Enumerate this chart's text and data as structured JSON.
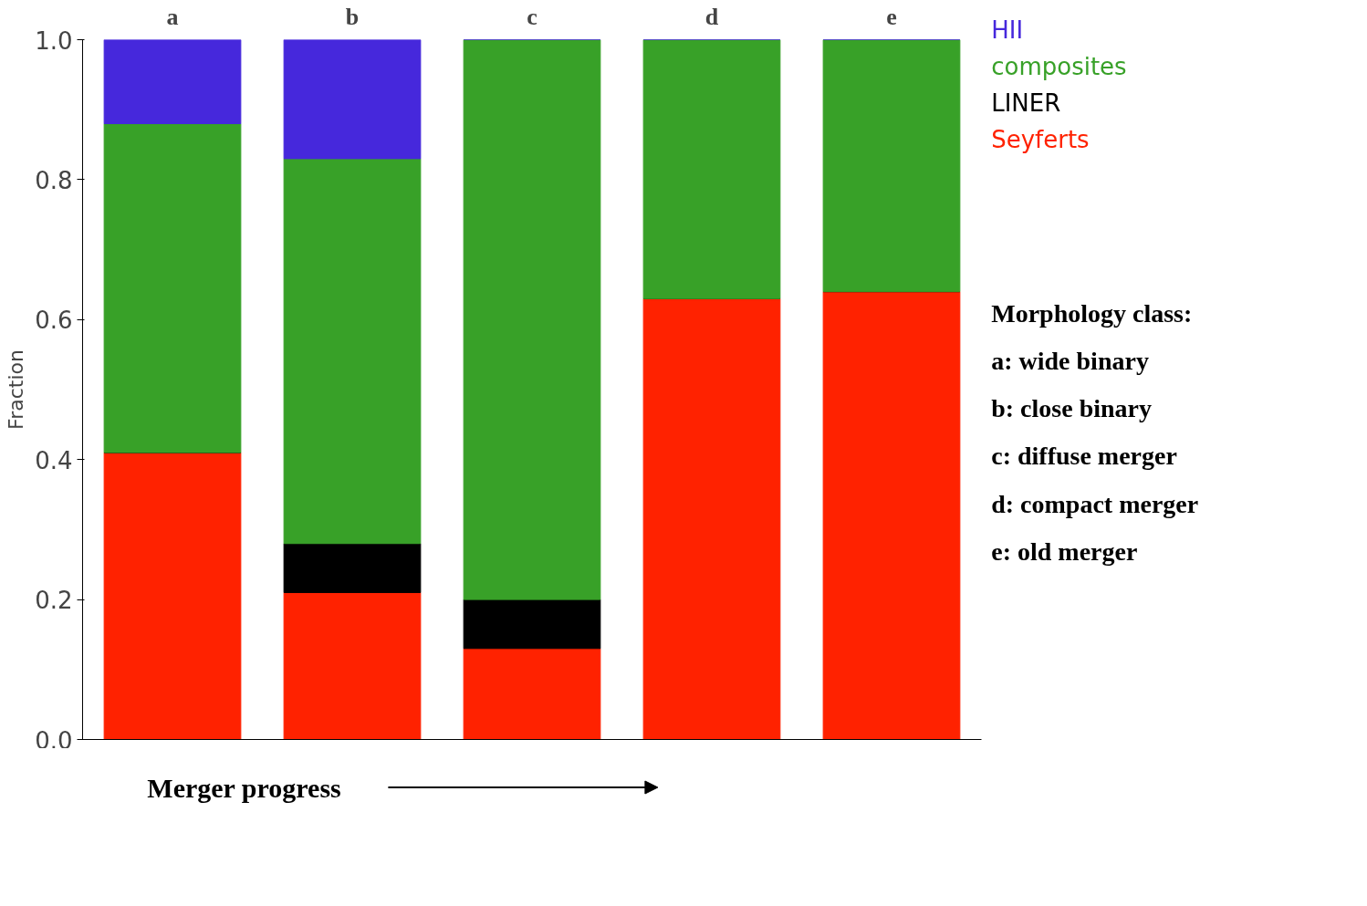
{
  "chart_data": {
    "type": "bar",
    "stacked": true,
    "categories": [
      "a",
      "b",
      "c",
      "d",
      "e"
    ],
    "series": [
      {
        "name": "Seyferts",
        "color": "#ff2200",
        "values": [
          0.41,
          0.21,
          0.13,
          0.63,
          0.64
        ]
      },
      {
        "name": "LINER",
        "color": "#000000",
        "values": [
          0,
          0.07,
          0.07,
          0,
          0
        ]
      },
      {
        "name": "composites",
        "color": "#38a128",
        "values": [
          0.47,
          0.55,
          0.8,
          0.37,
          0.36
        ]
      },
      {
        "name": "HII",
        "color": "#4628dc",
        "values": [
          0.12,
          0.17,
          0,
          0,
          0
        ]
      }
    ],
    "ylabel": "Fraction",
    "xlabel": "Merger progress",
    "ylim": [
      0,
      1.0
    ],
    "yticks": [
      {
        "value": 0,
        "label": "0.0"
      },
      0.2,
      0.4,
      0.6,
      0.8,
      {
        "value": 1,
        "label": "1.0"
      }
    ],
    "legend": "top right",
    "grid": false,
    "annotations": [
      "Morphology class:",
      "a: wide binary",
      "b: close binary",
      "c: diffuse merger",
      "d: compact merger",
      "e: old merger"
    ]
  }
}
